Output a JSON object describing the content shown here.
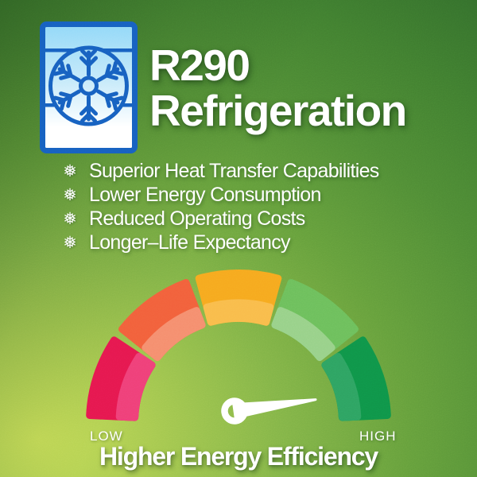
{
  "header": {
    "title_line1": "R290",
    "title_line2": "Refrigeration",
    "icon": "freezer-snowflake-icon"
  },
  "features": {
    "bullet_glyph": "❅",
    "items": [
      {
        "label": "Superior Heat Transfer Capabilities"
      },
      {
        "label": "Lower Energy Consumption"
      },
      {
        "label": "Reduced Operating Costs"
      },
      {
        "label": "Longer–Life Expectancy"
      }
    ]
  },
  "gauge": {
    "type": "semicircle-gauge",
    "low_label": "LOW",
    "high_label": "HIGH",
    "needle_points_to": "high",
    "needle_color": "#ffffff",
    "segments": [
      {
        "name": "very-low",
        "color": "#E6184F",
        "color_inner": "#EF4078"
      },
      {
        "name": "low",
        "color": "#F2603B",
        "color_inner": "#F58E6E"
      },
      {
        "name": "medium",
        "color": "#F6A91F",
        "color_inner": "#F9BC4B"
      },
      {
        "name": "high",
        "color": "#6DBF5C",
        "color_inner": "#98D189"
      },
      {
        "name": "very-high",
        "color": "#0F9549",
        "color_inner": "#2EA362"
      }
    ]
  },
  "footer": {
    "headline": "Higher Energy Efficiency"
  },
  "colors": {
    "background_top_left": "#2d6829",
    "background_top_right": "#4c8a35",
    "background_bottom_left": "#b8d14f",
    "background_bottom_right": "#5a9240",
    "text": "#ffffff",
    "icon_border": "#1760c0",
    "icon_snowflake": "#1760c0",
    "icon_bg_top": "#8ed7f7",
    "icon_bg_bottom": "#ffffff"
  }
}
